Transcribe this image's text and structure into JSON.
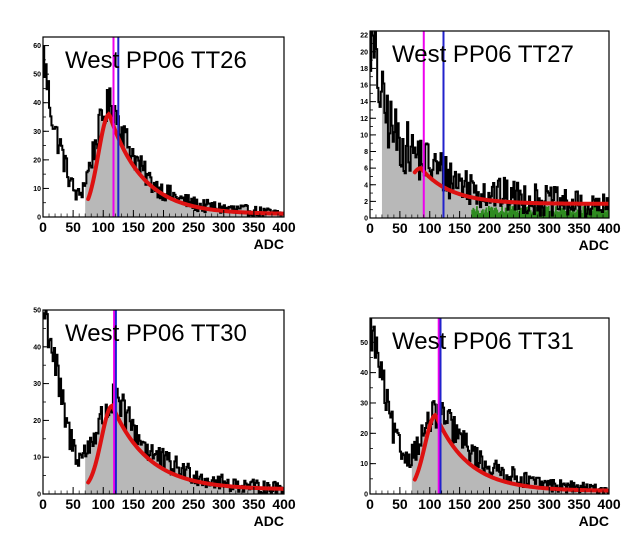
{
  "chart_data": [
    {
      "type": "histogram",
      "title": "West PP06 TT26",
      "xlabel": "ADC",
      "ylabel": "",
      "xlim": [
        0,
        400
      ],
      "ylim": [
        0,
        63
      ],
      "xticks": [
        0,
        50,
        100,
        150,
        200,
        250,
        300,
        350,
        400
      ],
      "xtick_labels": [
        "0",
        "50",
        "100",
        "150",
        "200",
        "250",
        "300",
        "350",
        "400"
      ],
      "yticks": [
        0,
        10,
        20,
        30,
        40,
        50,
        60
      ],
      "data_profile": [
        [
          0,
          58
        ],
        [
          10,
          42
        ],
        [
          20,
          30
        ],
        [
          30,
          24
        ],
        [
          40,
          16
        ],
        [
          50,
          10
        ],
        [
          58,
          7
        ],
        [
          66,
          10
        ],
        [
          75,
          16
        ],
        [
          85,
          24
        ],
        [
          95,
          32
        ],
        [
          105,
          38
        ],
        [
          115,
          40
        ],
        [
          125,
          34
        ],
        [
          140,
          26
        ],
        [
          160,
          18
        ],
        [
          180,
          12
        ],
        [
          200,
          9
        ],
        [
          230,
          6
        ],
        [
          260,
          4
        ],
        [
          300,
          3
        ],
        [
          350,
          2
        ],
        [
          400,
          1
        ]
      ],
      "shaded_range": [
        70,
        400
      ],
      "fit_range": [
        75,
        400
      ],
      "fit_peak": {
        "x": 110,
        "y": 36,
        "sigma_left": 18,
        "tail": 55,
        "floor": 1
      },
      "vertical_lines": [
        {
          "x": 117,
          "color": "#ee00ee"
        },
        {
          "x": 125,
          "color": "#2222cc"
        }
      ],
      "pedestal_fit": null
    },
    {
      "type": "histogram",
      "title": "West PP06 TT27",
      "xlabel": "ADC",
      "ylabel": "",
      "xlim": [
        0,
        400
      ],
      "ylim": [
        0,
        22.5
      ],
      "xticks": [
        0,
        50,
        100,
        150,
        200,
        250,
        300,
        350,
        400
      ],
      "xtick_labels": [
        "0",
        "50",
        "100",
        "150",
        "200",
        "250",
        "300",
        "350",
        "400"
      ],
      "yticks": [
        0,
        2,
        4,
        6,
        8,
        10,
        12,
        14,
        16,
        18,
        20,
        22
      ],
      "data_profile": [
        [
          0,
          22
        ],
        [
          10,
          18
        ],
        [
          20,
          14
        ],
        [
          35,
          11
        ],
        [
          50,
          9
        ],
        [
          70,
          8
        ],
        [
          90,
          7
        ],
        [
          110,
          6
        ],
        [
          130,
          5
        ],
        [
          160,
          4
        ],
        [
          200,
          3
        ],
        [
          250,
          2.5
        ],
        [
          300,
          2
        ],
        [
          350,
          1.5
        ],
        [
          400,
          1.2
        ]
      ],
      "shaded_range": [
        20,
        400
      ],
      "fit_range": [
        75,
        400
      ],
      "fit_peak": {
        "x": 85,
        "y": 6,
        "sigma_left": 20,
        "tail": 50,
        "floor": 1.7
      },
      "vertical_lines": [
        {
          "x": 90,
          "color": "#ee00ee"
        },
        {
          "x": 123,
          "color": "#2222cc"
        }
      ],
      "pedestal_fit": {
        "range": [
          170,
          400
        ],
        "value": 1.0,
        "color": "#2e8b20"
      }
    },
    {
      "type": "histogram",
      "title": "West PP06 TT30",
      "xlabel": "ADC",
      "ylabel": "",
      "xlim": [
        0,
        400
      ],
      "ylim": [
        0,
        50
      ],
      "xticks": [
        0,
        50,
        100,
        150,
        200,
        250,
        300,
        350,
        400
      ],
      "xtick_labels": [
        "0",
        "50",
        "100",
        "150",
        "200",
        "250",
        "300",
        "350",
        "400"
      ],
      "yticks": [
        0,
        10,
        20,
        30,
        40,
        50
      ],
      "data_profile": [
        [
          0,
          50
        ],
        [
          10,
          45
        ],
        [
          20,
          36
        ],
        [
          30,
          26
        ],
        [
          40,
          18
        ],
        [
          50,
          13
        ],
        [
          60,
          10
        ],
        [
          70,
          11
        ],
        [
          85,
          16
        ],
        [
          100,
          21
        ],
        [
          115,
          25
        ],
        [
          130,
          23
        ],
        [
          150,
          18
        ],
        [
          170,
          13
        ],
        [
          190,
          10
        ],
        [
          210,
          8
        ],
        [
          240,
          6
        ],
        [
          270,
          4
        ],
        [
          300,
          3
        ],
        [
          350,
          2
        ],
        [
          400,
          1.5
        ]
      ],
      "shaded_range": [
        70,
        400
      ],
      "fit_range": [
        75,
        400
      ],
      "fit_peak": {
        "x": 115,
        "y": 24,
        "sigma_left": 18,
        "tail": 60,
        "floor": 1.2
      },
      "vertical_lines": [
        {
          "x": 118,
          "color": "#ee00ee"
        },
        {
          "x": 121,
          "color": "#2222cc"
        }
      ],
      "pedestal_fit": null
    },
    {
      "type": "histogram",
      "title": "West PP06 TT31",
      "xlabel": "ADC",
      "ylabel": "",
      "xlim": [
        0,
        400
      ],
      "ylim": [
        0,
        58
      ],
      "xticks": [
        0,
        50,
        100,
        150,
        200,
        250,
        300,
        350,
        400
      ],
      "xtick_labels": [
        "0",
        "50",
        "100",
        "150",
        "200",
        "250",
        "300",
        "350",
        "400"
      ],
      "yticks": [
        0,
        10,
        20,
        30,
        40,
        50
      ],
      "data_profile": [
        [
          0,
          56
        ],
        [
          10,
          48
        ],
        [
          20,
          38
        ],
        [
          30,
          28
        ],
        [
          40,
          20
        ],
        [
          50,
          15
        ],
        [
          60,
          12
        ],
        [
          70,
          13
        ],
        [
          85,
          18
        ],
        [
          100,
          24
        ],
        [
          112,
          27
        ],
        [
          125,
          25
        ],
        [
          145,
          20
        ],
        [
          165,
          15
        ],
        [
          185,
          11
        ],
        [
          210,
          8
        ],
        [
          240,
          6
        ],
        [
          270,
          4
        ],
        [
          300,
          3
        ],
        [
          350,
          2
        ],
        [
          400,
          1.2
        ]
      ],
      "shaded_range": [
        70,
        400
      ],
      "fit_range": [
        75,
        400
      ],
      "fit_peak": {
        "x": 110,
        "y": 26,
        "sigma_left": 18,
        "tail": 55,
        "floor": 1
      },
      "vertical_lines": [
        {
          "x": 115,
          "color": "#ee00ee"
        },
        {
          "x": 118,
          "color": "#2222cc"
        }
      ],
      "pedestal_fit": null
    }
  ],
  "colors": {
    "histogram_line": "#000000",
    "histogram_fill": "#b8b8b8",
    "fit_curve": "#dd1111",
    "frame": "#000000",
    "background": "#ffffff"
  }
}
